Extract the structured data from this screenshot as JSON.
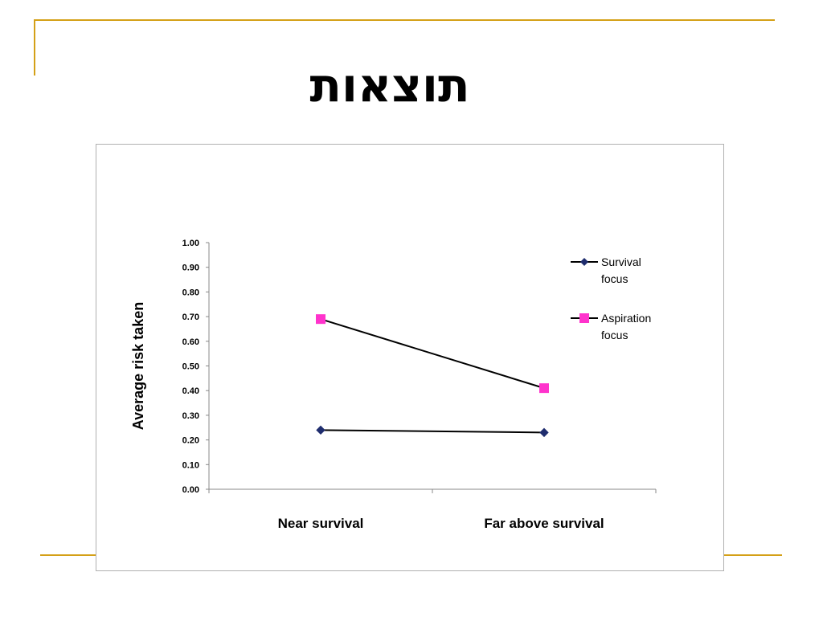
{
  "slide": {
    "title": "תוצאות"
  },
  "colors": {
    "accent_rule": "#d4a017",
    "survival_marker": "#1f2d6e",
    "aspiration_marker": "#ff33cc",
    "line": "#000000"
  },
  "chart_data": {
    "type": "line",
    "title": "",
    "xlabel": "",
    "ylabel": "Average risk taken",
    "categories": [
      "Near survival",
      "Far above survival"
    ],
    "ylim": [
      0,
      1
    ],
    "yticks": [
      "0.00",
      "0.10",
      "0.20",
      "0.30",
      "0.40",
      "0.50",
      "0.60",
      "0.70",
      "0.80",
      "0.90",
      "1.00"
    ],
    "grid": false,
    "legend_position": "right",
    "series": [
      {
        "name": "Survival focus",
        "legend_lines": [
          "Survival",
          "focus"
        ],
        "marker": "diamond",
        "values": [
          0.24,
          0.23
        ]
      },
      {
        "name": "Aspiration focus",
        "legend_lines": [
          "Aspiration",
          "focus"
        ],
        "marker": "square",
        "values": [
          0.69,
          0.41
        ]
      }
    ]
  }
}
